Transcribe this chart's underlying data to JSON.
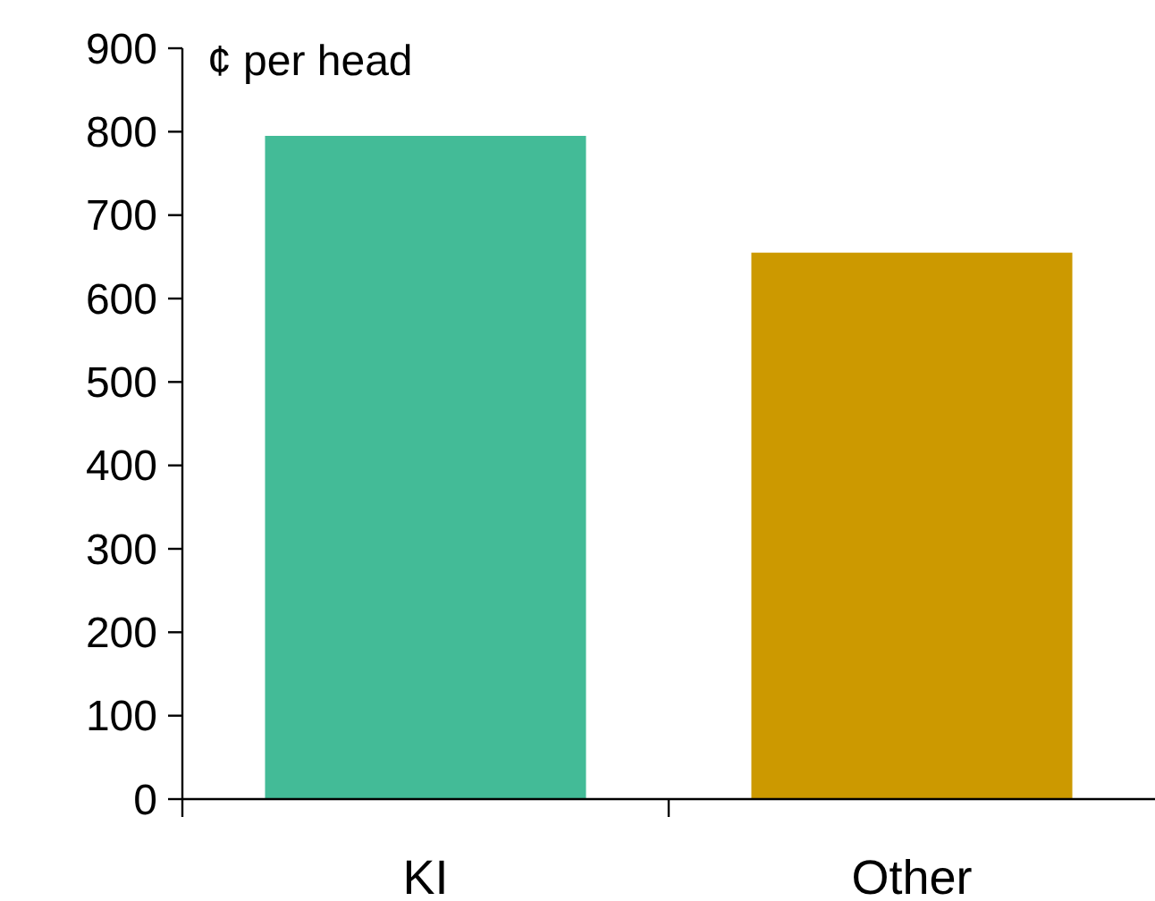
{
  "chart_data": {
    "type": "bar",
    "ylabel": "¢ per head",
    "categories": [
      "KI",
      "Other"
    ],
    "values": [
      795,
      655
    ],
    "colors": [
      "#43bb97",
      "#cc9900"
    ],
    "ylim": [
      0,
      900
    ],
    "yticks": [
      0,
      100,
      200,
      300,
      400,
      500,
      600,
      700,
      800,
      900
    ],
    "grid": false
  }
}
